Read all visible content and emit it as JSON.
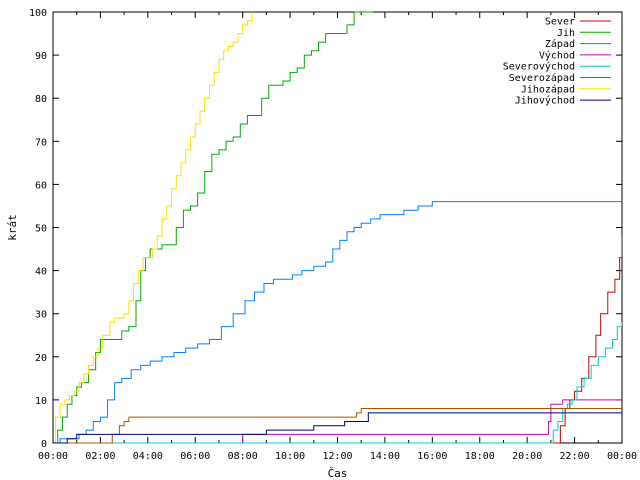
{
  "chart_data": {
    "type": "line",
    "title": "",
    "xlabel": "Čas",
    "ylabel": "krát",
    "xlim": [
      0,
      24
    ],
    "ylim": [
      0,
      100
    ],
    "x_ticks": [
      "00:00",
      "02:00",
      "04:00",
      "06:00",
      "08:00",
      "10:00",
      "12:00",
      "14:00",
      "16:00",
      "18:00",
      "20:00",
      "22:00",
      "00:00"
    ],
    "y_ticks": [
      0,
      10,
      20,
      30,
      40,
      50,
      60,
      70,
      80,
      90,
      100
    ],
    "legend_position": "top-right",
    "series": [
      {
        "name": "Sever",
        "color": "#cc0000",
        "x": [
          0,
          21.1,
          21.4,
          21.6,
          21.8,
          22.0,
          22.3,
          22.6,
          22.9,
          23.1,
          23.4,
          23.7,
          23.9,
          24.0
        ],
        "y": [
          0,
          0,
          4,
          8,
          10,
          12,
          15,
          20,
          25,
          30,
          35,
          38,
          43,
          48
        ]
      },
      {
        "name": "Jih",
        "color": "#00aa00",
        "x": [
          0,
          0.2,
          0.4,
          0.6,
          0.8,
          1.0,
          1.2,
          1.5,
          1.8,
          2.0,
          2.3,
          2.6,
          2.9,
          3.2,
          3.5,
          3.7,
          3.9,
          4.1,
          4.3,
          4.6,
          4.9,
          5.2,
          5.5,
          5.8,
          6.1,
          6.4,
          6.7,
          7.0,
          7.3,
          7.6,
          7.9,
          8.2,
          8.5,
          8.8,
          9.1,
          9.4,
          9.7,
          10.0,
          10.3,
          10.6,
          10.9,
          11.2,
          11.5,
          11.8,
          12.1,
          12.4,
          12.7,
          13.0,
          13.3,
          13.5
        ],
        "y": [
          0,
          3,
          6,
          9,
          11,
          13,
          14,
          17,
          21,
          24,
          24,
          24,
          26,
          27,
          33,
          40,
          43,
          45,
          45,
          46,
          46,
          50,
          54,
          55,
          58,
          63,
          67,
          68,
          70,
          71,
          74,
          76,
          76,
          80,
          83,
          83,
          84,
          86,
          87,
          90,
          91,
          93,
          95,
          95,
          95,
          97,
          100,
          100,
          100,
          100
        ]
      },
      {
        "name": "Západ",
        "color": "#0080ff",
        "x": [
          0,
          0.3,
          1.1,
          1.4,
          1.7,
          2.0,
          2.3,
          2.6,
          2.9,
          3.3,
          3.7,
          4.1,
          4.6,
          5.1,
          5.6,
          6.1,
          6.6,
          7.1,
          7.6,
          8.1,
          8.5,
          8.9,
          9.3,
          9.7,
          10.1,
          10.5,
          11.0,
          11.5,
          11.8,
          12.1,
          12.4,
          12.7,
          13.0,
          13.4,
          13.8,
          14.3,
          14.8,
          15.4,
          16.0,
          17.0,
          18.0,
          20.0,
          22.0,
          24.0
        ],
        "y": [
          0,
          1,
          2,
          3,
          5,
          6,
          10,
          14,
          15,
          17,
          18,
          19,
          20,
          21,
          22,
          23,
          24,
          27,
          30,
          33,
          35,
          37,
          38,
          38,
          39,
          40,
          41,
          42,
          45,
          47,
          49,
          50,
          51,
          52,
          53,
          53,
          54,
          55,
          56,
          56,
          56,
          56,
          56,
          56
        ]
      },
      {
        "name": "Východ",
        "color": "#cc00cc",
        "x": [
          0,
          7.9,
          8.0,
          20.8,
          20.9,
          21.0,
          21.5,
          24.0
        ],
        "y": [
          0,
          0,
          2,
          2,
          5,
          9,
          10,
          10
        ]
      },
      {
        "name": "Severovýchod",
        "color": "#00cccc",
        "x": [
          0,
          20.9,
          21.1,
          21.3,
          21.5,
          21.7,
          21.9,
          22.1,
          22.4,
          22.7,
          23.0,
          23.3,
          23.6,
          23.8,
          24.0
        ],
        "y": [
          0,
          0,
          3,
          5,
          8,
          9,
          10,
          13,
          15,
          18,
          20,
          22,
          24,
          27,
          28
        ]
      },
      {
        "name": "Severozápad",
        "color": "#aa5500",
        "x": [
          0,
          2.4,
          2.5,
          2.8,
          3.0,
          3.2,
          12.5,
          12.8,
          13.0,
          20.5,
          21.0,
          24.0
        ],
        "y": [
          0,
          0,
          2,
          4,
          5,
          6,
          6,
          7,
          8,
          8,
          8,
          8
        ]
      },
      {
        "name": "Jihozápad",
        "color": "#ffdd00",
        "x": [
          0,
          0.1,
          0.3,
          0.5,
          0.7,
          0.9,
          1.1,
          1.3,
          1.5,
          1.7,
          1.9,
          2.1,
          2.4,
          2.6,
          2.8,
          3.0,
          3.2,
          3.4,
          3.6,
          3.8,
          4.0,
          4.2,
          4.4,
          4.6,
          4.8,
          5.0,
          5.2,
          5.4,
          5.6,
          5.8,
          6.0,
          6.2,
          6.4,
          6.6,
          6.8,
          7.0,
          7.2,
          7.4,
          7.6,
          7.8,
          8.0,
          8.2,
          8.4
        ],
        "y": [
          0,
          6,
          9,
          10,
          11,
          12,
          14,
          16,
          18,
          20,
          22,
          25,
          28,
          29,
          29,
          30,
          33,
          37,
          40,
          43,
          43,
          45,
          48,
          52,
          55,
          59,
          62,
          65,
          68,
          71,
          74,
          77,
          80,
          83,
          86,
          89,
          91,
          92,
          93,
          95,
          97,
          98,
          100
        ]
      },
      {
        "name": "Jihovýchod",
        "color": "#000080",
        "x": [
          0,
          0.3,
          0.6,
          1.0,
          2.5,
          5.0,
          8.0,
          8.5,
          9.0,
          10.0,
          11.0,
          12.0,
          12.3,
          12.8,
          13.3,
          20.0,
          22.0,
          24.0
        ],
        "y": [
          0,
          0,
          1,
          2,
          2,
          2,
          2,
          2,
          3,
          3,
          4,
          4,
          5,
          5,
          7,
          7,
          7,
          7
        ]
      }
    ]
  }
}
